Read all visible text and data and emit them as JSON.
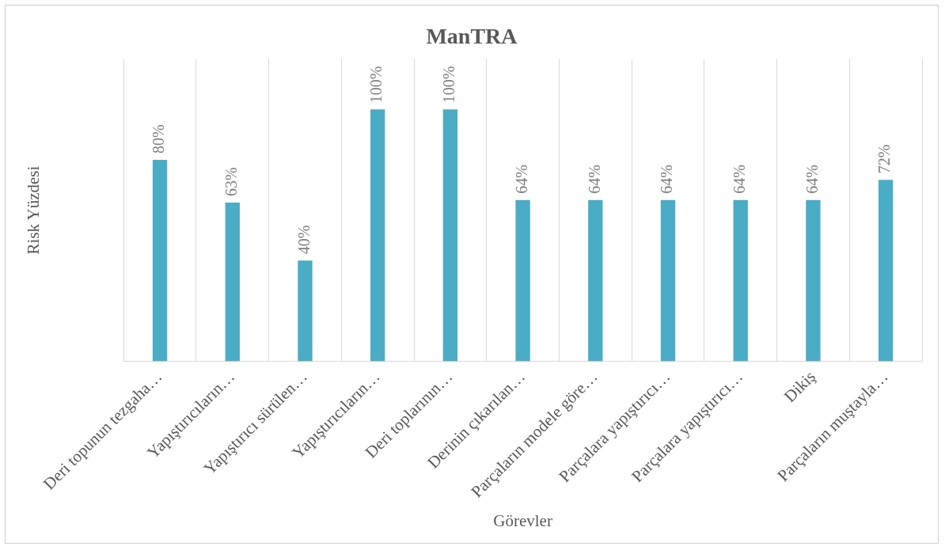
{
  "chart_data": {
    "type": "bar",
    "title": "ManTRA",
    "xlabel": "Görevler",
    "ylabel": "Risk Yüzdesi",
    "categories": [
      "Deri topunun tezgaha…",
      "Yapıştırıcıların…",
      "Yapıştırıcı sürülen…",
      "Yapıştırıcıların…",
      "Deri toplarının…",
      "Derinin çıkarılan…",
      "Parçaların modele göre…",
      "Parçalara yapıştırıcı…",
      "Parçalara yapıştırıcı…",
      "Dikiş",
      "Parçaların muştayla…"
    ],
    "values": [
      80,
      63,
      40,
      100,
      100,
      64,
      64,
      64,
      64,
      64,
      72
    ],
    "value_labels": [
      "80%",
      "63%",
      "40%",
      "100%",
      "100%",
      "64%",
      "64%",
      "64%",
      "64%",
      "64%",
      "72%"
    ],
    "color": "#4bacc6",
    "grid": "x",
    "tick_labels": "x"
  }
}
